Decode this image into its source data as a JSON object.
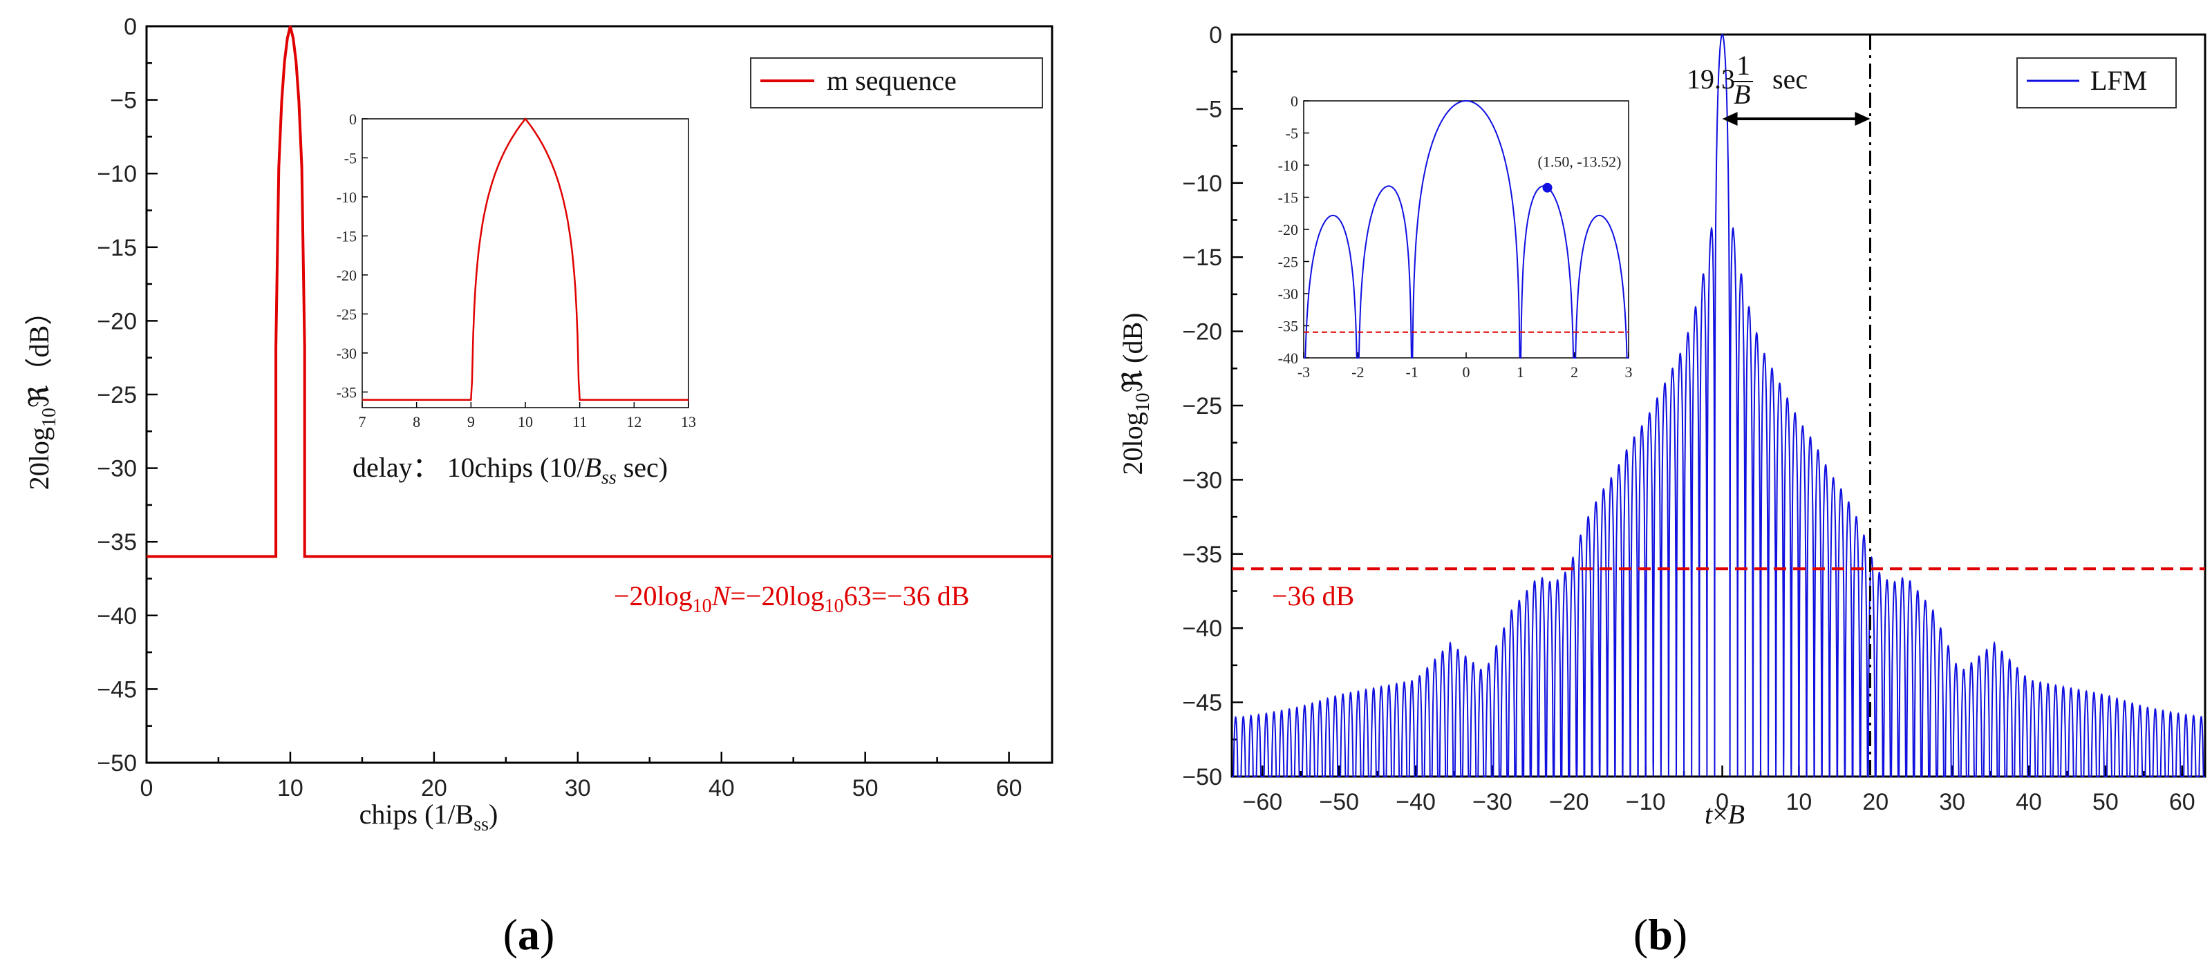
{
  "chart_data": [
    {
      "id": "a",
      "type": "line",
      "panel_label": "(a)",
      "xlabel": "chips (1/B",
      "xlabel_sub": "ss",
      "xlabel_end": ")",
      "ylabel": "20log",
      "ylabel_sub": "10",
      "ylabel_end": "ℜ（dB）",
      "xlim": [
        0,
        63
      ],
      "ylim": [
        -50,
        0
      ],
      "xticks": [
        0,
        10,
        20,
        30,
        40,
        50,
        60
      ],
      "xtick_labels": [
        "0",
        "10",
        "20",
        "30",
        "40",
        "50",
        "60"
      ],
      "yticks": [
        0,
        -5,
        -10,
        -15,
        -20,
        -25,
        -30,
        -35,
        -40,
        -45,
        -50
      ],
      "ytick_labels": [
        "0",
        "−5",
        "−10",
        "−15",
        "−20",
        "−25",
        "−30",
        "−35",
        "−40",
        "−45",
        "−50"
      ],
      "legend": "m sequence",
      "series": [
        {
          "name": "m sequence",
          "color": "#e00000",
          "x": [
            0,
            9,
            9,
            9.2,
            9.4,
            9.6,
            9.8,
            10,
            10.2,
            10.4,
            10.6,
            10.8,
            11,
            11,
            63
          ],
          "y": [
            -36,
            -36,
            -21.8,
            -9.6,
            -5.1,
            -2.4,
            -0.8,
            0,
            -0.8,
            -2.4,
            -5.1,
            -9.6,
            -21.8,
            -36,
            -36
          ]
        }
      ],
      "annotation_delay": {
        "prefix": "delay：  10chips (10/",
        "var": "B",
        "sub": "ss",
        "suffix": " sec)"
      },
      "annotation_floor": {
        "p1": "−20log",
        "s1": "10",
        "var": "N",
        "p2": "=−20log",
        "s2": "10",
        "p3": "63=−36 dB"
      },
      "inset": {
        "xlim": [
          7,
          13
        ],
        "ylim": [
          -37,
          0
        ],
        "xticks": [
          7,
          8,
          9,
          10,
          11,
          12,
          13
        ],
        "xtick_labels": [
          "7",
          "8",
          "9",
          "10",
          "11",
          "12",
          "13"
        ],
        "yticks": [
          0,
          -5,
          -10,
          -15,
          -20,
          -25,
          -30,
          -35
        ],
        "ytick_labels": [
          "0",
          "-5",
          "-10",
          "-15",
          "-20",
          "-25",
          "-30",
          "-35"
        ]
      }
    },
    {
      "id": "b",
      "type": "line",
      "panel_label": "(b)",
      "xlabel_var1": "t",
      "xlabel_mid": "×",
      "xlabel_var2": "B",
      "ylabel": "20log",
      "ylabel_sub": "10",
      "ylabel_end": "ℜ (dB)",
      "xlim": [
        -64,
        63
      ],
      "ylim": [
        -50,
        0
      ],
      "xticks": [
        -60,
        -50,
        -40,
        -30,
        -20,
        -10,
        0,
        10,
        20,
        30,
        40,
        50,
        60
      ],
      "xtick_labels": [
        "−60",
        "−50",
        "−40",
        "−30",
        "−20",
        "−10",
        "0",
        "10",
        "20",
        "30",
        "40",
        "50",
        "60"
      ],
      "yticks": [
        0,
        -5,
        -10,
        -15,
        -20,
        -25,
        -30,
        -35,
        -40,
        -45,
        -50
      ],
      "ytick_labels": [
        "0",
        "−5",
        "−10",
        "−15",
        "−20",
        "−25",
        "−30",
        "−35",
        "−40",
        "−45",
        "−50"
      ],
      "legend": "LFM",
      "series": [
        {
          "name": "LFM",
          "color": "#1010e0",
          "model": "chirp-sinc-sidelobes",
          "sidelobe_spacing": 1,
          "floor_db": -50
        }
      ],
      "envelope_peaks": {
        "x": [
          0,
          1.5,
          3,
          5,
          8,
          10,
          12,
          14,
          16,
          18,
          20,
          22,
          24,
          27.5,
          31,
          35.5,
          40,
          45,
          50,
          55,
          60,
          63
        ],
        "y": [
          0,
          -13.52,
          -17.5,
          -21,
          -24,
          -26,
          -27.5,
          -29.5,
          -31,
          -33,
          -36,
          -37,
          -36.5,
          -38.8,
          -43,
          -41,
          -43.5,
          -44,
          -44.5,
          -45.3,
          -45.8,
          -46
        ]
      },
      "threshold": {
        "y": -36,
        "label": "−36 dB",
        "color": "#e00000"
      },
      "vline": {
        "x": 19.3
      },
      "arrow_annotation": {
        "prefix": "19.3",
        "num": "1",
        "den": "B",
        "suffix": "sec"
      },
      "inset": {
        "xlim": [
          -3,
          3
        ],
        "ylim": [
          -40,
          0
        ],
        "xticks": [
          -3,
          -2,
          -1,
          0,
          1,
          2,
          3
        ],
        "xtick_labels": [
          "-3",
          "-2",
          "-1",
          "0",
          "1",
          "2",
          "3"
        ],
        "yticks": [
          0,
          -5,
          -10,
          -15,
          -20,
          -25,
          -30,
          -35,
          -40
        ],
        "ytick_labels": [
          "0",
          "-5",
          "-10",
          "-15",
          "-20",
          "-25",
          "-30",
          "-35",
          "-40"
        ],
        "threshold": -36,
        "marker": {
          "x": 1.5,
          "y": -13.52,
          "label": "(1.50, -13.52)"
        }
      }
    }
  ]
}
